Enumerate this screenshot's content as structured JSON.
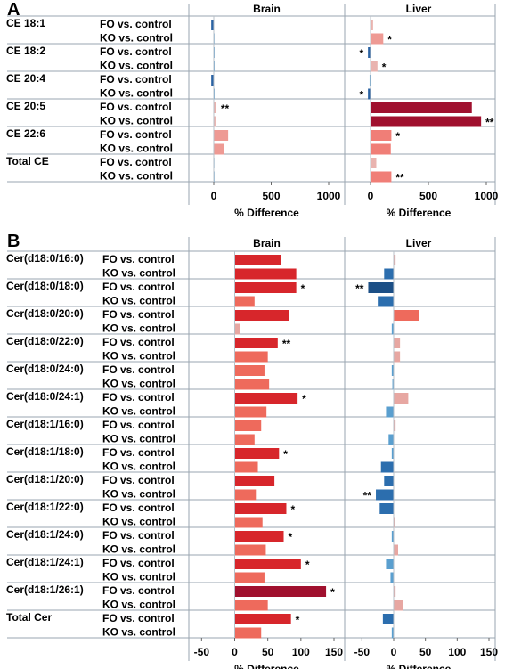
{
  "chart_data": [
    {
      "type": "bar",
      "panel_label": "A",
      "facets": [
        "Brain",
        "Liver"
      ],
      "groups": [
        "CE 18:1",
        "CE 18:2",
        "CE 20:4",
        "CE 20:5",
        "CE 22:6",
        "Total CE"
      ],
      "comparisons": [
        "FO vs. control",
        "KO vs. control"
      ],
      "xlabel": "% Difference",
      "xlim": [
        -20,
        1060
      ],
      "xticks": [
        0,
        500,
        1000
      ],
      "grid": false,
      "values": {
        "Brain": [
          [
            -22,
            -3
          ],
          [
            -2,
            -2
          ],
          [
            -22,
            -2
          ],
          [
            22,
            15
          ],
          [
            125,
            90
          ],
          [
            -4,
            -3
          ]
        ],
        "Liver": [
          [
            22,
            110
          ],
          [
            -22,
            60
          ],
          [
            -8,
            -22
          ],
          [
            875,
            955
          ],
          [
            180,
            175
          ],
          [
            50,
            180
          ]
        ]
      },
      "significance": {
        "Brain": [
          [
            "",
            ""
          ],
          [
            "",
            ""
          ],
          [
            "",
            ""
          ],
          [
            "**",
            ""
          ],
          [
            "",
            ""
          ],
          [
            "",
            ""
          ]
        ],
        "Liver": [
          [
            "",
            "*"
          ],
          [
            "*",
            "*"
          ],
          [
            "",
            "*"
          ],
          [
            "",
            "**"
          ],
          [
            "*",
            ""
          ],
          [
            "",
            "**"
          ]
        ]
      }
    },
    {
      "type": "bar",
      "panel_label": "B",
      "facets": [
        "Brain",
        "Liver"
      ],
      "groups": [
        "Cer(d18:0/16:0)",
        "Cer(d18:0/18:0)",
        "Cer(d18:0/20:0)",
        "Cer(d18:0/22:0)",
        "Cer(d18:0/24:0)",
        "Cer(d18:0/24:1)",
        "Cer(d18:1/16:0)",
        "Cer(d18:1/18:0)",
        "Cer(d18:1/20:0)",
        "Cer(d18:1/22:0)",
        "Cer(d18:1/24:0)",
        "Cer(d18:1/24:1)",
        "Cer(d18:1/26:1)",
        "Total Cer"
      ],
      "comparisons": [
        "FO vs. control",
        "KO vs. control"
      ],
      "xlabel": "% Difference",
      "xlim": [
        -75,
        155
      ],
      "xticks": [
        -50,
        0,
        50,
        100,
        150
      ],
      "grid": false,
      "values": {
        "Brain": [
          [
            70,
            93
          ],
          [
            93,
            30
          ],
          [
            82,
            8
          ],
          [
            65,
            50
          ],
          [
            45,
            52
          ],
          [
            95,
            48
          ],
          [
            40,
            30
          ],
          [
            67,
            35
          ],
          [
            60,
            32
          ],
          [
            78,
            42
          ],
          [
            74,
            47
          ],
          [
            100,
            45
          ],
          [
            138,
            50
          ],
          [
            85,
            40
          ]
        ],
        "Liver": [
          [
            3,
            -15
          ],
          [
            -40,
            -25
          ],
          [
            40,
            -3
          ],
          [
            10,
            10
          ],
          [
            -3,
            -2
          ],
          [
            23,
            -12
          ],
          [
            3,
            -8
          ],
          [
            -3,
            -20
          ],
          [
            -15,
            -28
          ],
          [
            -22,
            2
          ],
          [
            -3,
            7
          ],
          [
            -12,
            -5
          ],
          [
            3,
            15
          ],
          [
            -17,
            -3
          ]
        ]
      },
      "significance": {
        "Brain": [
          [
            "",
            ""
          ],
          [
            "*",
            ""
          ],
          [
            "",
            ""
          ],
          [
            "**",
            ""
          ],
          [
            "",
            ""
          ],
          [
            "*",
            ""
          ],
          [
            "",
            ""
          ],
          [
            "*",
            ""
          ],
          [
            "",
            ""
          ],
          [
            "*",
            ""
          ],
          [
            "*",
            ""
          ],
          [
            "*",
            ""
          ],
          [
            "*",
            ""
          ],
          [
            "*",
            ""
          ]
        ],
        "Liver": [
          [
            "",
            ""
          ],
          [
            "**",
            ""
          ],
          [
            "",
            ""
          ],
          [
            "",
            ""
          ],
          [
            "",
            ""
          ],
          [
            "",
            ""
          ],
          [
            "",
            ""
          ],
          [
            "",
            ""
          ],
          [
            "",
            "**"
          ],
          [
            "",
            ""
          ],
          [
            "",
            ""
          ],
          [
            "",
            ""
          ],
          [
            "",
            ""
          ],
          [
            "",
            ""
          ]
        ]
      }
    }
  ]
}
